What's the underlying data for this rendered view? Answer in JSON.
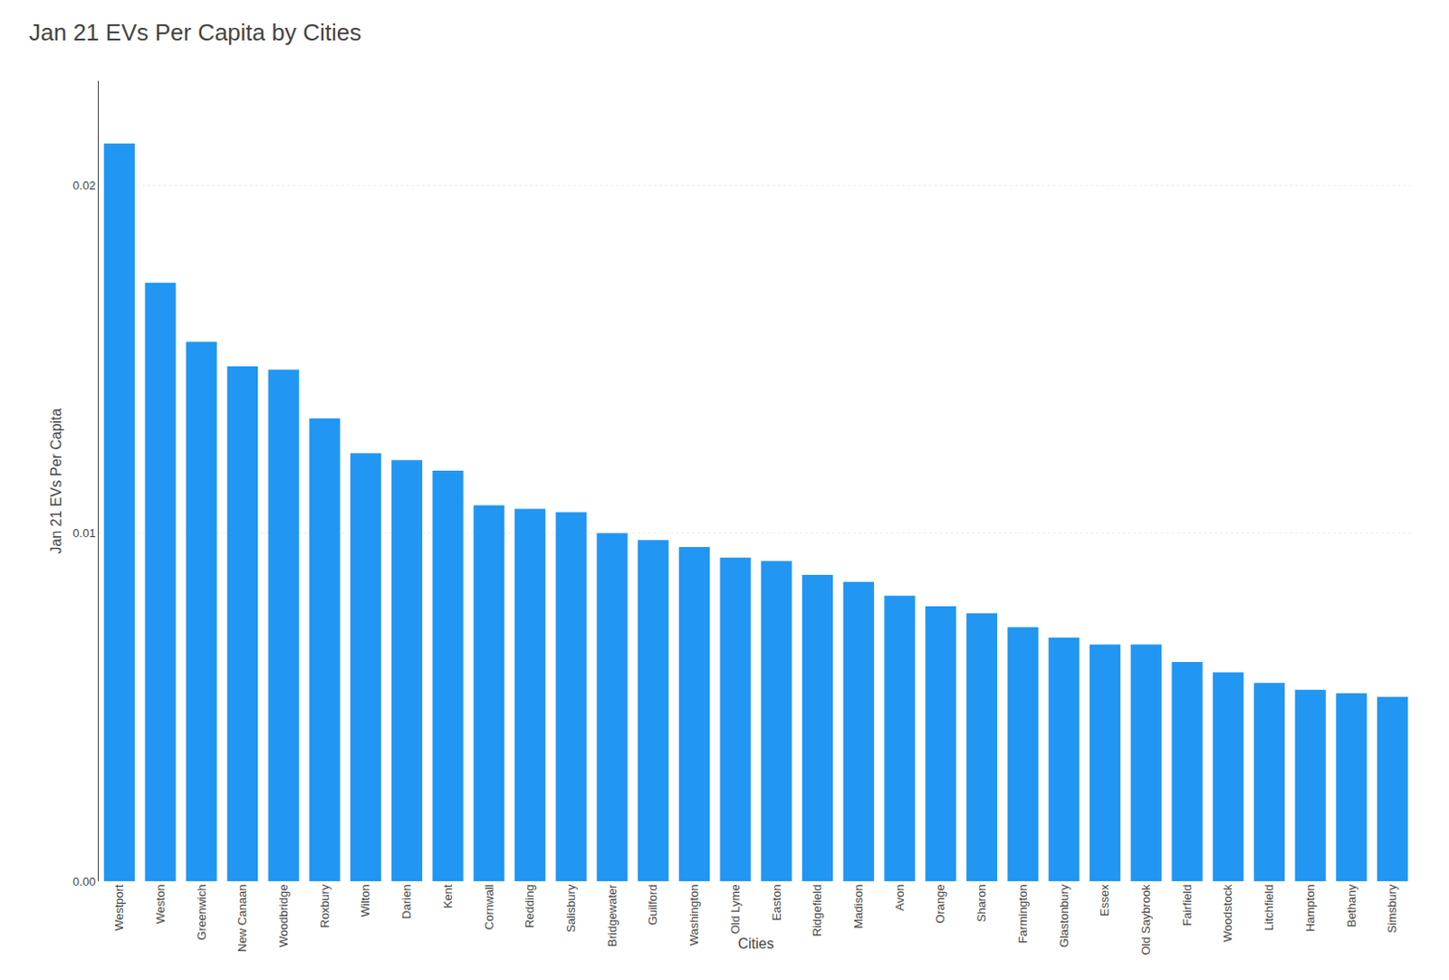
{
  "chart_data": {
    "type": "bar",
    "title": "Jan 21 EVs Per Capita by Cities",
    "xlabel": "Cities",
    "ylabel": "Jan 21 EVs Per Capita",
    "color": "#2196F3",
    "categories": [
      "Westport",
      "Weston",
      "Greenwich",
      "New Canaan",
      "Woodbridge",
      "Roxbury",
      "Wilton",
      "Darien",
      "Kent",
      "Cornwall",
      "Redding",
      "Salisbury",
      "Bridgewater",
      "Guilford",
      "Washington",
      "Old Lyme",
      "Easton",
      "Ridgefield",
      "Madison",
      "Avon",
      "Orange",
      "Sharon",
      "Farmington",
      "Glastonbury",
      "Essex",
      "Old Saybrook",
      "Fairfield",
      "Woodstock",
      "Litchfield",
      "Hampton",
      "Bethany",
      "Simsbury"
    ],
    "values": [
      0.0212,
      0.0172,
      0.0155,
      0.0148,
      0.0147,
      0.0133,
      0.0123,
      0.0121,
      0.0118,
      0.0108,
      0.0107,
      0.0106,
      0.01,
      0.0098,
      0.0096,
      0.0093,
      0.0092,
      0.0088,
      0.0086,
      0.0082,
      0.0079,
      0.0077,
      0.0073,
      0.007,
      0.0068,
      0.0068,
      0.0063,
      0.006,
      0.0057,
      0.0055,
      0.0054,
      0.0053
    ],
    "ylim": [
      0,
      0.023
    ],
    "yticks": [
      {
        "value": 0,
        "label": "0.00"
      },
      0.01,
      0.02
    ],
    "grid": true
  }
}
